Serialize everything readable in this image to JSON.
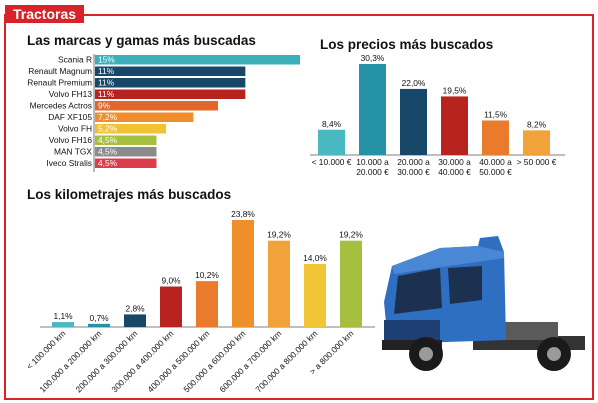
{
  "header": {
    "tag": "Tractoras"
  },
  "chart_data": [
    {
      "type": "bar",
      "orientation": "horizontal",
      "title": "Las marcas y gamas más buscadas",
      "categories": [
        "Scania R",
        "Renault Magnum",
        "Renault Premium",
        "Volvo FH13",
        "Mercedes Actros",
        "DAF XF105",
        "Volvo FH",
        "Volvo FH16",
        "MAN TGX",
        "Iveco Stralis"
      ],
      "values": [
        15,
        11,
        11,
        11,
        9,
        7.2,
        5.2,
        4.5,
        4.5,
        4.5
      ],
      "value_labels": [
        "15%",
        "11%",
        "11%",
        "11%",
        "9%",
        "7,2%",
        "5,2%",
        "4,5%",
        "4,5%",
        "4,5%"
      ],
      "colors": [
        "#3cb0b8",
        "#17486a",
        "#17486a",
        "#b8231f",
        "#e2672a",
        "#ef8f2c",
        "#f1c232",
        "#a6bf3f",
        "#8b8b8b",
        "#db3d4a"
      ],
      "xlim": [
        0,
        15
      ]
    },
    {
      "type": "bar",
      "title": "Los precios más buscados",
      "categories": [
        "< 10.000 €",
        "10.000 a 20.000 €",
        "20.000 a 30.000 €",
        "30.000 a 40.000 €",
        "40.000 a 50.000 €",
        "> 50 000 €"
      ],
      "values": [
        8.4,
        30.3,
        22.0,
        19.5,
        11.5,
        8.2
      ],
      "value_labels": [
        "8,4%",
        "30,3%",
        "22,0%",
        "19,5%",
        "11,5%",
        "8,2%"
      ],
      "colors": [
        "#4ab8c1",
        "#2493a8",
        "#17486a",
        "#b8231f",
        "#ea7a2c",
        "#f1a23a"
      ],
      "ylim": [
        0,
        30.3
      ]
    },
    {
      "type": "bar",
      "title": "Los kilometrajes más buscados",
      "categories": [
        "< 100.000 km",
        "100.000 a 200.000 km",
        "200.000 a 300.000 km",
        "300.000 a 400.000 km",
        "400.000 a 500.000 km",
        "500.000 a 600.000 km",
        "600.000 a 700.000 km",
        "700.000 a 800.000 km",
        "> a 800.000 km"
      ],
      "values": [
        1.1,
        0.7,
        2.8,
        9.0,
        10.2,
        23.8,
        19.2,
        14.0,
        19.2
      ],
      "value_labels": [
        "1,1%",
        "0,7%",
        "2,8%",
        "9,0%",
        "10,2%",
        "23,8%",
        "19,2%",
        "14,0%",
        "19,2%"
      ],
      "colors": [
        "#4ab8c1",
        "#2493a8",
        "#17486a",
        "#b8231f",
        "#ea7a2c",
        "#ef8f2c",
        "#f1a23a",
        "#f2c537",
        "#a6bf3f"
      ],
      "ylim": [
        0,
        23.8
      ]
    }
  ],
  "illustration": {
    "name": "truck-illustration",
    "body_color": "#2f6fc2"
  }
}
